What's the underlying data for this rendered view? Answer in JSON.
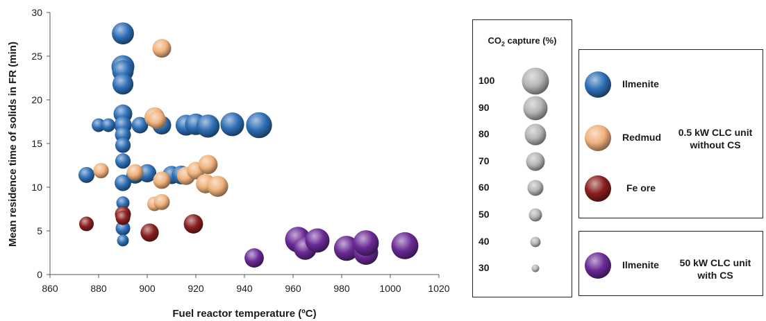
{
  "chart_data": {
    "type": "scatter",
    "subtype": "bubble",
    "xlabel": "Fuel reactor temperature (ºC)",
    "ylabel": "Mean residence time of solids in FR (min)",
    "xlim": [
      860,
      1020
    ],
    "ylim": [
      0,
      30
    ],
    "xticks": [
      "860",
      "880",
      "900",
      "920",
      "940",
      "960",
      "980",
      "1000",
      "1020"
    ],
    "yticks": [
      "0",
      "5",
      "10",
      "15",
      "20",
      "25",
      "30"
    ],
    "grid": false,
    "size_encoding": {
      "title": "CO2 capture (%)",
      "title_main": "CO",
      "title_sub": "2",
      "title_rest": " capture (%)",
      "levels": [
        100,
        90,
        80,
        70,
        60,
        50,
        40,
        30
      ],
      "level_labels": [
        "100",
        "90",
        "80",
        "70",
        "60",
        "50",
        "40",
        "30"
      ]
    },
    "series": [
      {
        "name": "Ilmenite",
        "group": "0.5 kW CLC unit without CS",
        "color": "#2e6fb6",
        "points": [
          {
            "x": 890,
            "y": 27.6,
            "capture": 82
          },
          {
            "x": 890,
            "y": 23.8,
            "capture": 85
          },
          {
            "x": 890,
            "y": 23.3,
            "capture": 80
          },
          {
            "x": 890,
            "y": 21.8,
            "capture": 78
          },
          {
            "x": 890,
            "y": 18.4,
            "capture": 70
          },
          {
            "x": 890,
            "y": 17.1,
            "capture": 66
          },
          {
            "x": 890,
            "y": 16.0,
            "capture": 60
          },
          {
            "x": 890,
            "y": 14.8,
            "capture": 58
          },
          {
            "x": 890,
            "y": 13.0,
            "capture": 58
          },
          {
            "x": 890,
            "y": 10.5,
            "capture": 62
          },
          {
            "x": 890,
            "y": 8.2,
            "capture": 50
          },
          {
            "x": 890,
            "y": 5.3,
            "capture": 55
          },
          {
            "x": 890,
            "y": 3.9,
            "capture": 45
          },
          {
            "x": 880,
            "y": 17.1,
            "capture": 52
          },
          {
            "x": 884,
            "y": 17.1,
            "capture": 52
          },
          {
            "x": 875,
            "y": 11.4,
            "capture": 60
          },
          {
            "x": 895,
            "y": 11.4,
            "capture": 65
          },
          {
            "x": 897,
            "y": 17.1,
            "capture": 62
          },
          {
            "x": 900,
            "y": 11.6,
            "capture": 68
          },
          {
            "x": 906,
            "y": 17.1,
            "capture": 70
          },
          {
            "x": 910,
            "y": 11.4,
            "capture": 68
          },
          {
            "x": 914,
            "y": 11.4,
            "capture": 70
          },
          {
            "x": 916,
            "y": 17.1,
            "capture": 78
          },
          {
            "x": 920,
            "y": 17.2,
            "capture": 80
          },
          {
            "x": 925,
            "y": 17.0,
            "capture": 86
          },
          {
            "x": 935,
            "y": 17.2,
            "capture": 88
          },
          {
            "x": 946,
            "y": 17.1,
            "capture": 96
          }
        ]
      },
      {
        "name": "Redmud",
        "group": "0.5 kW CLC unit without CS",
        "color": "#f0b27c",
        "points": [
          {
            "x": 906,
            "y": 25.9,
            "capture": 70
          },
          {
            "x": 903,
            "y": 18.0,
            "capture": 75
          },
          {
            "x": 904,
            "y": 17.7,
            "capture": 68
          },
          {
            "x": 881,
            "y": 11.9,
            "capture": 58
          },
          {
            "x": 895,
            "y": 11.7,
            "capture": 62
          },
          {
            "x": 906,
            "y": 10.8,
            "capture": 65
          },
          {
            "x": 916,
            "y": 11.3,
            "capture": 68
          },
          {
            "x": 920,
            "y": 11.9,
            "capture": 66
          },
          {
            "x": 925,
            "y": 12.6,
            "capture": 72
          },
          {
            "x": 924,
            "y": 10.4,
            "capture": 72
          },
          {
            "x": 929,
            "y": 10.1,
            "capture": 78
          },
          {
            "x": 903,
            "y": 8.1,
            "capture": 55
          },
          {
            "x": 906,
            "y": 8.3,
            "capture": 60
          }
        ]
      },
      {
        "name": "Fe ore",
        "group": "0.5 kW CLC unit without CS",
        "color": "#8a1f1f",
        "points": [
          {
            "x": 875,
            "y": 5.8,
            "capture": 55
          },
          {
            "x": 890,
            "y": 6.9,
            "capture": 60
          },
          {
            "x": 890,
            "y": 6.5,
            "capture": 55
          },
          {
            "x": 901,
            "y": 4.8,
            "capture": 68
          },
          {
            "x": 919,
            "y": 5.8,
            "capture": 72
          }
        ]
      },
      {
        "name": "Ilmenite",
        "group": "50 kW CLC unit with CS",
        "color": "#6a2a96",
        "points": [
          {
            "x": 944,
            "y": 1.9,
            "capture": 72
          },
          {
            "x": 962,
            "y": 4.0,
            "capture": 95
          },
          {
            "x": 965,
            "y": 3.0,
            "capture": 85
          },
          {
            "x": 970,
            "y": 3.9,
            "capture": 90
          },
          {
            "x": 982,
            "y": 3.0,
            "capture": 93
          },
          {
            "x": 990,
            "y": 2.5,
            "capture": 90
          },
          {
            "x": 990,
            "y": 3.6,
            "capture": 95
          },
          {
            "x": 1006,
            "y": 3.3,
            "capture": 100
          }
        ]
      }
    ]
  },
  "legend": {
    "groups": [
      {
        "label_lines": [
          "0.5 kW CLC unit",
          "without CS"
        ],
        "items": [
          "Ilmenite",
          "Redmud",
          "Fe ore"
        ]
      },
      {
        "label_lines": [
          "50 kW CLC unit",
          "with CS"
        ],
        "items": [
          "Ilmenite"
        ]
      }
    ]
  },
  "colors": {
    "ilmenite_blue": "#2e6fb6",
    "redmud_orange": "#f0b27c",
    "fe_ore_red": "#8a1f1f",
    "ilmenite_purple": "#6a2a96",
    "size_key_gray": "#b5b5b5"
  }
}
